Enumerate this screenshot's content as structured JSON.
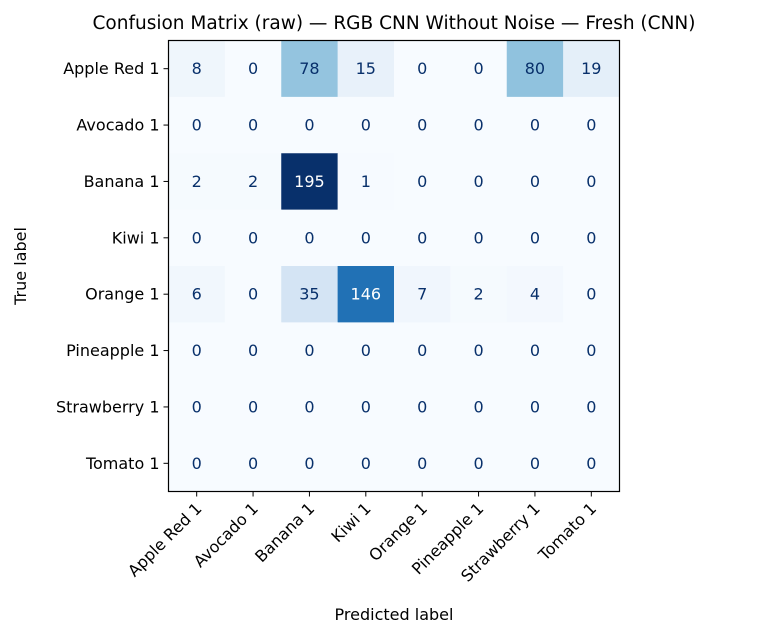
{
  "chart_data": {
    "type": "heatmap",
    "title": "Confusion Matrix (raw) — RGB CNN Without Noise — Fresh (CNN)",
    "xlabel": "Predicted label",
    "ylabel": "True label",
    "labels": [
      "Apple Red 1",
      "Avocado 1",
      "Banana 1",
      "Kiwi 1",
      "Orange 1",
      "Pineapple 1",
      "Strawberry 1",
      "Tomato 1"
    ],
    "matrix": [
      [
        8,
        0,
        78,
        15,
        0,
        0,
        80,
        19
      ],
      [
        0,
        0,
        0,
        0,
        0,
        0,
        0,
        0
      ],
      [
        2,
        2,
        195,
        1,
        0,
        0,
        0,
        0
      ],
      [
        0,
        0,
        0,
        0,
        0,
        0,
        0,
        0
      ],
      [
        6,
        0,
        35,
        146,
        7,
        2,
        4,
        0
      ],
      [
        0,
        0,
        0,
        0,
        0,
        0,
        0,
        0
      ],
      [
        0,
        0,
        0,
        0,
        0,
        0,
        0,
        0
      ],
      [
        0,
        0,
        0,
        0,
        0,
        0,
        0,
        0
      ]
    ],
    "colormap": "Blues",
    "vmin": 0,
    "vmax": 195,
    "colorbar": false,
    "xtick_rotation": 45
  }
}
